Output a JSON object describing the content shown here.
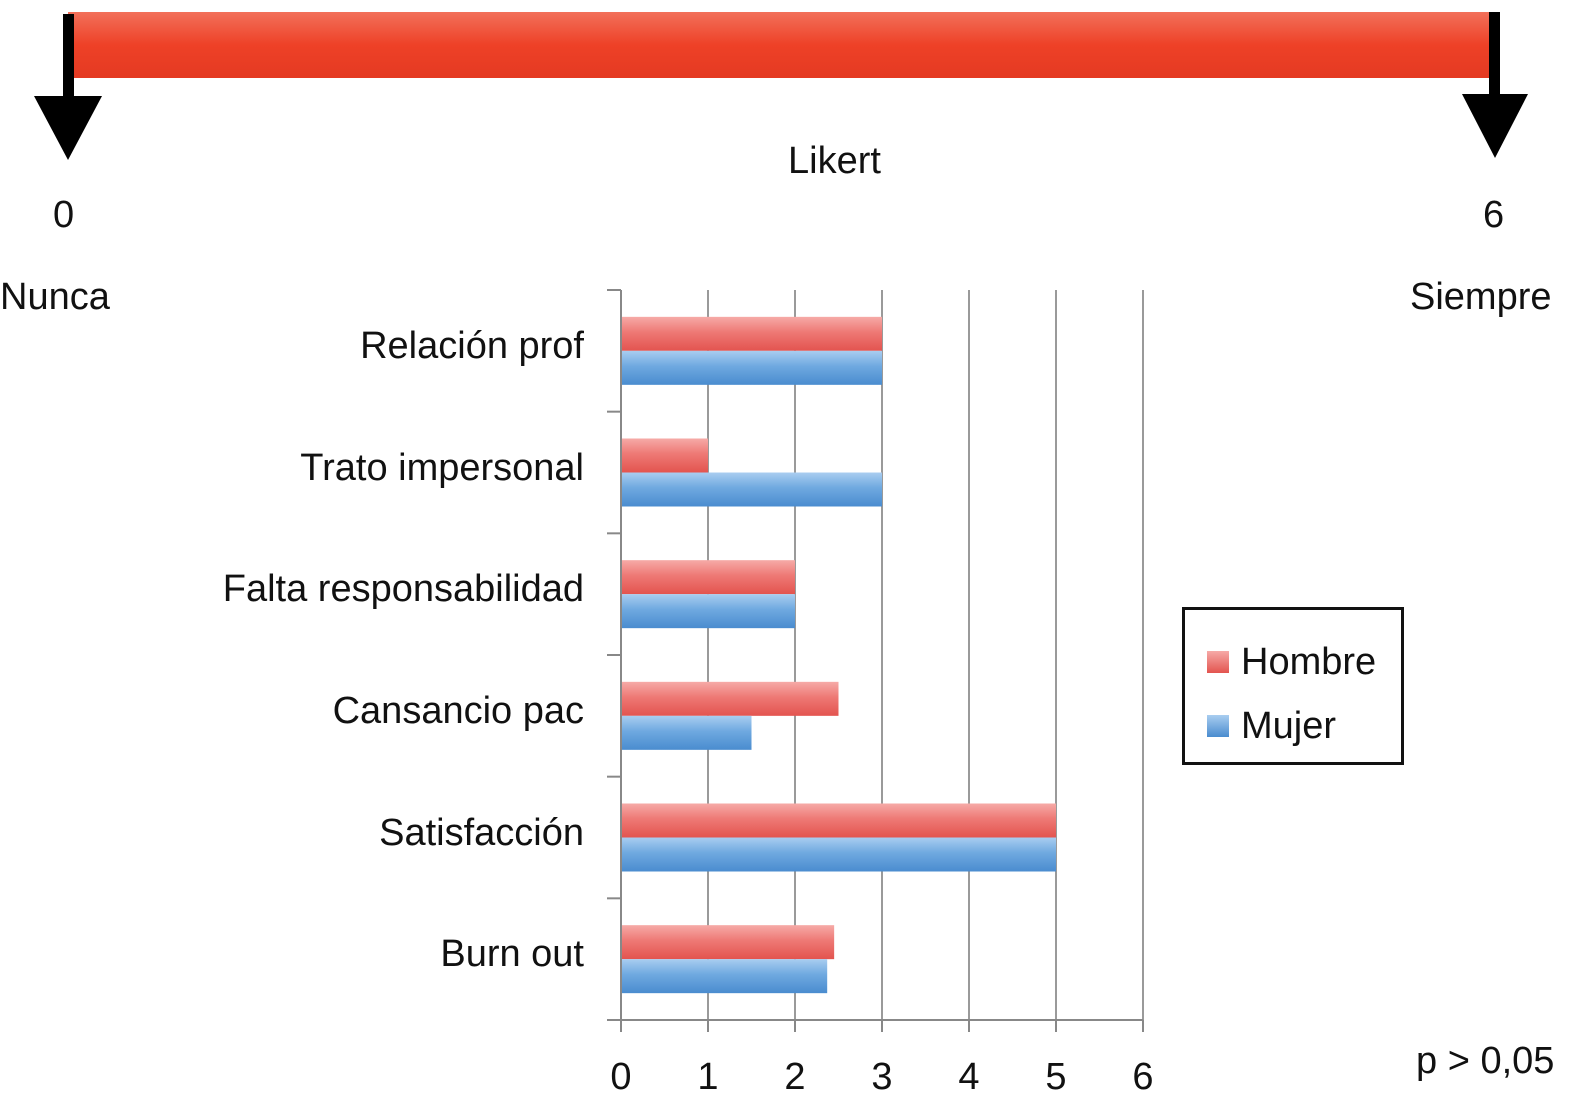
{
  "likert_scale": {
    "title": "Likert",
    "min_value": "0",
    "max_value": "6",
    "min_label": "Nunca",
    "max_label": "Siempre",
    "bar_color": "#ee4127"
  },
  "significance_note": "p > 0,05",
  "chart_data": {
    "type": "bar",
    "orientation": "horizontal",
    "categories": [
      "Relación prof",
      "Trato impersonal",
      "Falta responsabilidad",
      "Cansancio pac",
      "Satisfacción",
      "Burn out"
    ],
    "series": [
      {
        "name": "Hombre",
        "color": "#e8635e",
        "values": [
          3,
          1,
          2,
          2.5,
          5,
          2.45
        ]
      },
      {
        "name": "Mujer",
        "color": "#5b9bd5",
        "values": [
          3,
          3,
          2,
          1.5,
          5,
          2.37
        ]
      }
    ],
    "xlim": [
      0,
      6
    ],
    "xticks": [
      "0",
      "1",
      "2",
      "3",
      "4",
      "5",
      "6"
    ],
    "grid": true,
    "legend_position": "right"
  }
}
